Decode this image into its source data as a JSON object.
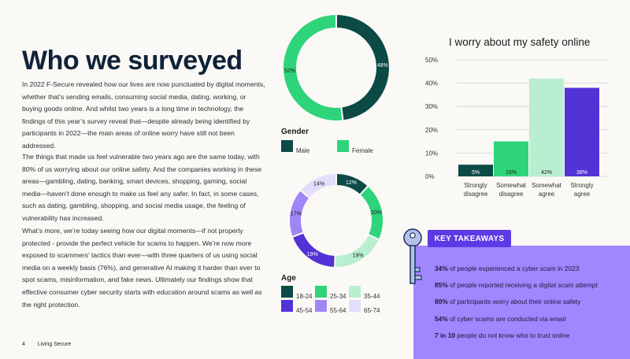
{
  "heading": "Who we surveyed",
  "paragraphs": [
    "In 2022 F-Secure revealed how our lives are now punctuated by digital moments, whether that’s sending emails, consuming social media, dating, working, or buying goods online. And whilst two years is a long time in technology, the findings of this year’s survey reveal that—despite already being identified by participants in 2022—the main areas of online worry have still not been addressed.",
    "The things that made us feel vulnerable two years ago are the same today, with 80% of us worrying about our online safety. And the companies working in these areas—gambling, dating, banking, smart devices, shopping, gaming, social media—haven’t done enough to make us feel any safer. In fact, in some cases, such as dating, gambling, shopping, and social media usage, the feeling of vulnerability has increased.",
    "What’s more, we’re today seeing how our digital moments—if not properly protected - provide the perfect vehicle for scams to happen. We’re now more exposed to scammers’ tactics than ever—with three quarters of us using social media on a weekly basis (76%), and generative AI making it harder than ever to spot scams, misinformation, and fake news. Ultimately our findings show that effective consumer cyber security starts with education around scams as well as the right protection."
  ],
  "footer": {
    "page_number": "4",
    "publication": "Living Secure"
  },
  "gender": {
    "label": "Gender",
    "segments": [
      {
        "name": "Male",
        "value": 48,
        "label": "48%",
        "color": "#0b4a45"
      },
      {
        "name": "Female",
        "value": 52,
        "label": "52%",
        "color": "#2ed47a"
      }
    ]
  },
  "age": {
    "label": "Age",
    "segments": [
      {
        "name": "18-24",
        "value": 12,
        "label": "12%",
        "color": "#0b4a45"
      },
      {
        "name": "25-34",
        "value": 20,
        "label": "20%",
        "color": "#2ed47a"
      },
      {
        "name": "35-44",
        "value": 19,
        "label": "19%",
        "color": "#b9efd0"
      },
      {
        "name": "45-54",
        "value": 19,
        "label": "19%",
        "color": "#5133d6"
      },
      {
        "name": "55-64",
        "value": 17,
        "label": "17%",
        "color": "#9f86f6"
      },
      {
        "name": "65-74",
        "value": 14,
        "label": "14%",
        "color": "#e4dcfb"
      }
    ]
  },
  "chart_data": {
    "type": "bar",
    "title": "I worry about my safety online",
    "categories": [
      "Strongly disagree",
      "Somewhat disagree",
      "Somewhat agree",
      "Strongly agree"
    ],
    "values": [
      5,
      15,
      42,
      38
    ],
    "value_labels": [
      "5%",
      "15%",
      "42%",
      "38%"
    ],
    "colors": [
      "#0b4a45",
      "#2ed47a",
      "#b9efd0",
      "#5133d6"
    ],
    "ylim": [
      0,
      50
    ],
    "yticks": [
      "0%",
      "10%",
      "20%",
      "30%",
      "40%",
      "50%"
    ],
    "grid": true
  },
  "takeaways": {
    "badge": "KEY TAKEAWAYS",
    "items": [
      {
        "stat": "34%",
        "text": " of people experienced a cyber scam in 2023"
      },
      {
        "stat": "85%",
        "text": " of people reported receiving a digital scam attempt"
      },
      {
        "stat": "80%",
        "text": " of participants worry about their online safety"
      },
      {
        "stat": "54%",
        "text": " of cyber scams are conducted via email"
      },
      {
        "stat": "7 in 10",
        "text": " people do not know who to trust online"
      }
    ]
  }
}
